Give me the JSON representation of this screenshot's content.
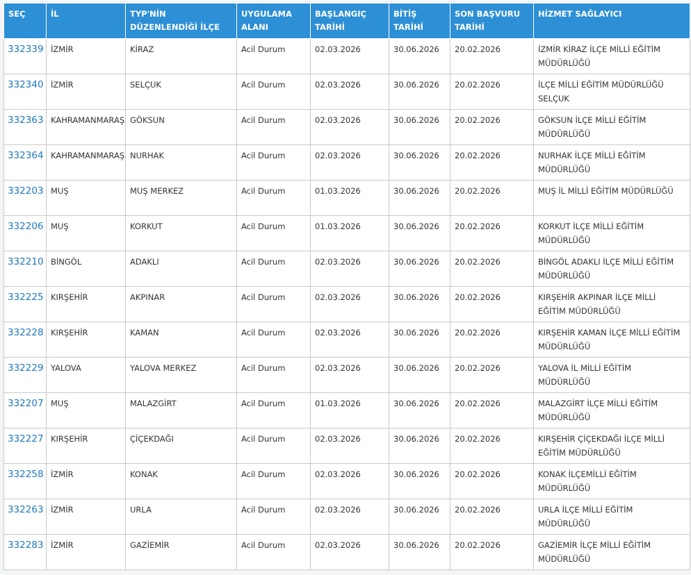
{
  "table": {
    "headers": [
      "SEÇ",
      "İL",
      "TYP'NİN DÜZENLENDİĞİ İLÇE",
      "UYGULAMA ALANI",
      "BAŞLANGIÇ TARİHİ",
      "BİTİŞ TARİHİ",
      "SON BAŞVURU TARİHİ",
      "HİZMET SAĞLAYICI"
    ],
    "rows": [
      [
        "332339",
        "İZMİR",
        "KİRAZ",
        "Acil Durum",
        "02.03.2026",
        "30.06.2026",
        "20.02.2026",
        "İZMİR KİRAZ İLÇE MİLLİ EĞİTİM MÜDÜRLÜĞÜ"
      ],
      [
        "332340",
        "İZMİR",
        "SELÇUK",
        "Acil Durum",
        "02.03.2026",
        "30.06.2026",
        "20.02.2026",
        "İLÇE MİLLİ EĞİTİM MÜDÜRLÜĞÜ SELÇUK"
      ],
      [
        "332363",
        "KAHRAMANMARAŞ",
        "GÖKSUN",
        "Acil Durum",
        "02.03.2026",
        "30.06.2026",
        "20.02.2026",
        "GÖKSUN İLÇE MİLLİ EĞİTİM MÜDÜRLÜĞÜ"
      ],
      [
        "332364",
        "KAHRAMANMARAŞ",
        "NURHAK",
        "Acil Durum",
        "02.03.2026",
        "30.06.2026",
        "20.02.2026",
        "NURHAK İLÇE MİLLİ EĞİTİM MÜDÜRLÜĞÜ"
      ],
      [
        "332203",
        "MUŞ",
        "MUŞ MERKEZ",
        "Acil Durum",
        "01.03.2026",
        "30.06.2026",
        "20.02.2026",
        "MUŞ İL MİLLİ EĞİTİM MÜDÜRLÜĞÜ"
      ],
      [
        "332206",
        "MUŞ",
        "KORKUT",
        "Acil Durum",
        "01.03.2026",
        "30.06.2026",
        "20.02.2026",
        "KORKUT İLÇE MİLLİ EĞİTİM MÜDÜRLÜĞÜ"
      ],
      [
        "332210",
        "BİNGÖL",
        "ADAKLI",
        "Acil Durum",
        "02.03.2026",
        "30.06.2026",
        "20.02.2026",
        "BİNGÖL ADAKLI İLÇE MİLLİ EĞİTİM MÜDÜRLÜĞÜ"
      ],
      [
        "332225",
        "KIRŞEHİR",
        "AKPINAR",
        "Acil Durum",
        "02.03.2026",
        "30.06.2026",
        "20.02.2026",
        "KIRŞEHİR AKPINAR İLÇE MİLLİ EĞİTİM MÜDÜRLÜĞÜ"
      ],
      [
        "332228",
        "KIRŞEHİR",
        "KAMAN",
        "Acil Durum",
        "02.03.2026",
        "30.06.2026",
        "20.02.2026",
        "KIRŞEHİR KAMAN İLÇE MİLLİ EĞİTİM MÜDÜRLÜĞÜ"
      ],
      [
        "332229",
        "YALOVA",
        "YALOVA MERKEZ",
        "Acil Durum",
        "02.03.2026",
        "30.06.2026",
        "20.02.2026",
        "YALOVA İL MİLLİ EĞİTİM MÜDÜRLÜĞÜ"
      ],
      [
        "332207",
        "MUŞ",
        "MALAZGİRT",
        "Acil Durum",
        "01.03.2026",
        "30.06.2026",
        "20.02.2026",
        "MALAZGİRT İLÇE MİLLİ EĞİTİM MÜDÜRLÜĞÜ"
      ],
      [
        "332227",
        "KIRŞEHİR",
        "ÇİÇEKDAĞI",
        "Acil Durum",
        "02.03.2026",
        "30.06.2026",
        "20.02.2026",
        "KIRŞEHİR ÇİÇEKDAĞI İLÇE MİLLİ EĞİTİM MÜDÜRLÜĞÜ"
      ],
      [
        "332258",
        "İZMİR",
        "KONAK",
        "Acil Durum",
        "02.03.2026",
        "30.06.2026",
        "20.02.2026",
        "KONAK İLÇEMİLLİ EĞİTİM MÜDÜRLÜĞÜ"
      ],
      [
        "332263",
        "İZMİR",
        "URLA",
        "Acil Durum",
        "02.03.2026",
        "30.06.2026",
        "20.02.2026",
        "URLA İLÇE MİLLİ EĞİTİM MÜDÜRLÜĞÜ"
      ],
      [
        "332283",
        "İZMİR",
        "GAZİEMİR",
        "Acil Durum",
        "02.03.2026",
        "30.06.2026",
        "20.02.2026",
        "GAZİEMİR İLÇE MİLLİ EĞİTİM MÜDÜRLÜĞÜ"
      ]
    ]
  }
}
